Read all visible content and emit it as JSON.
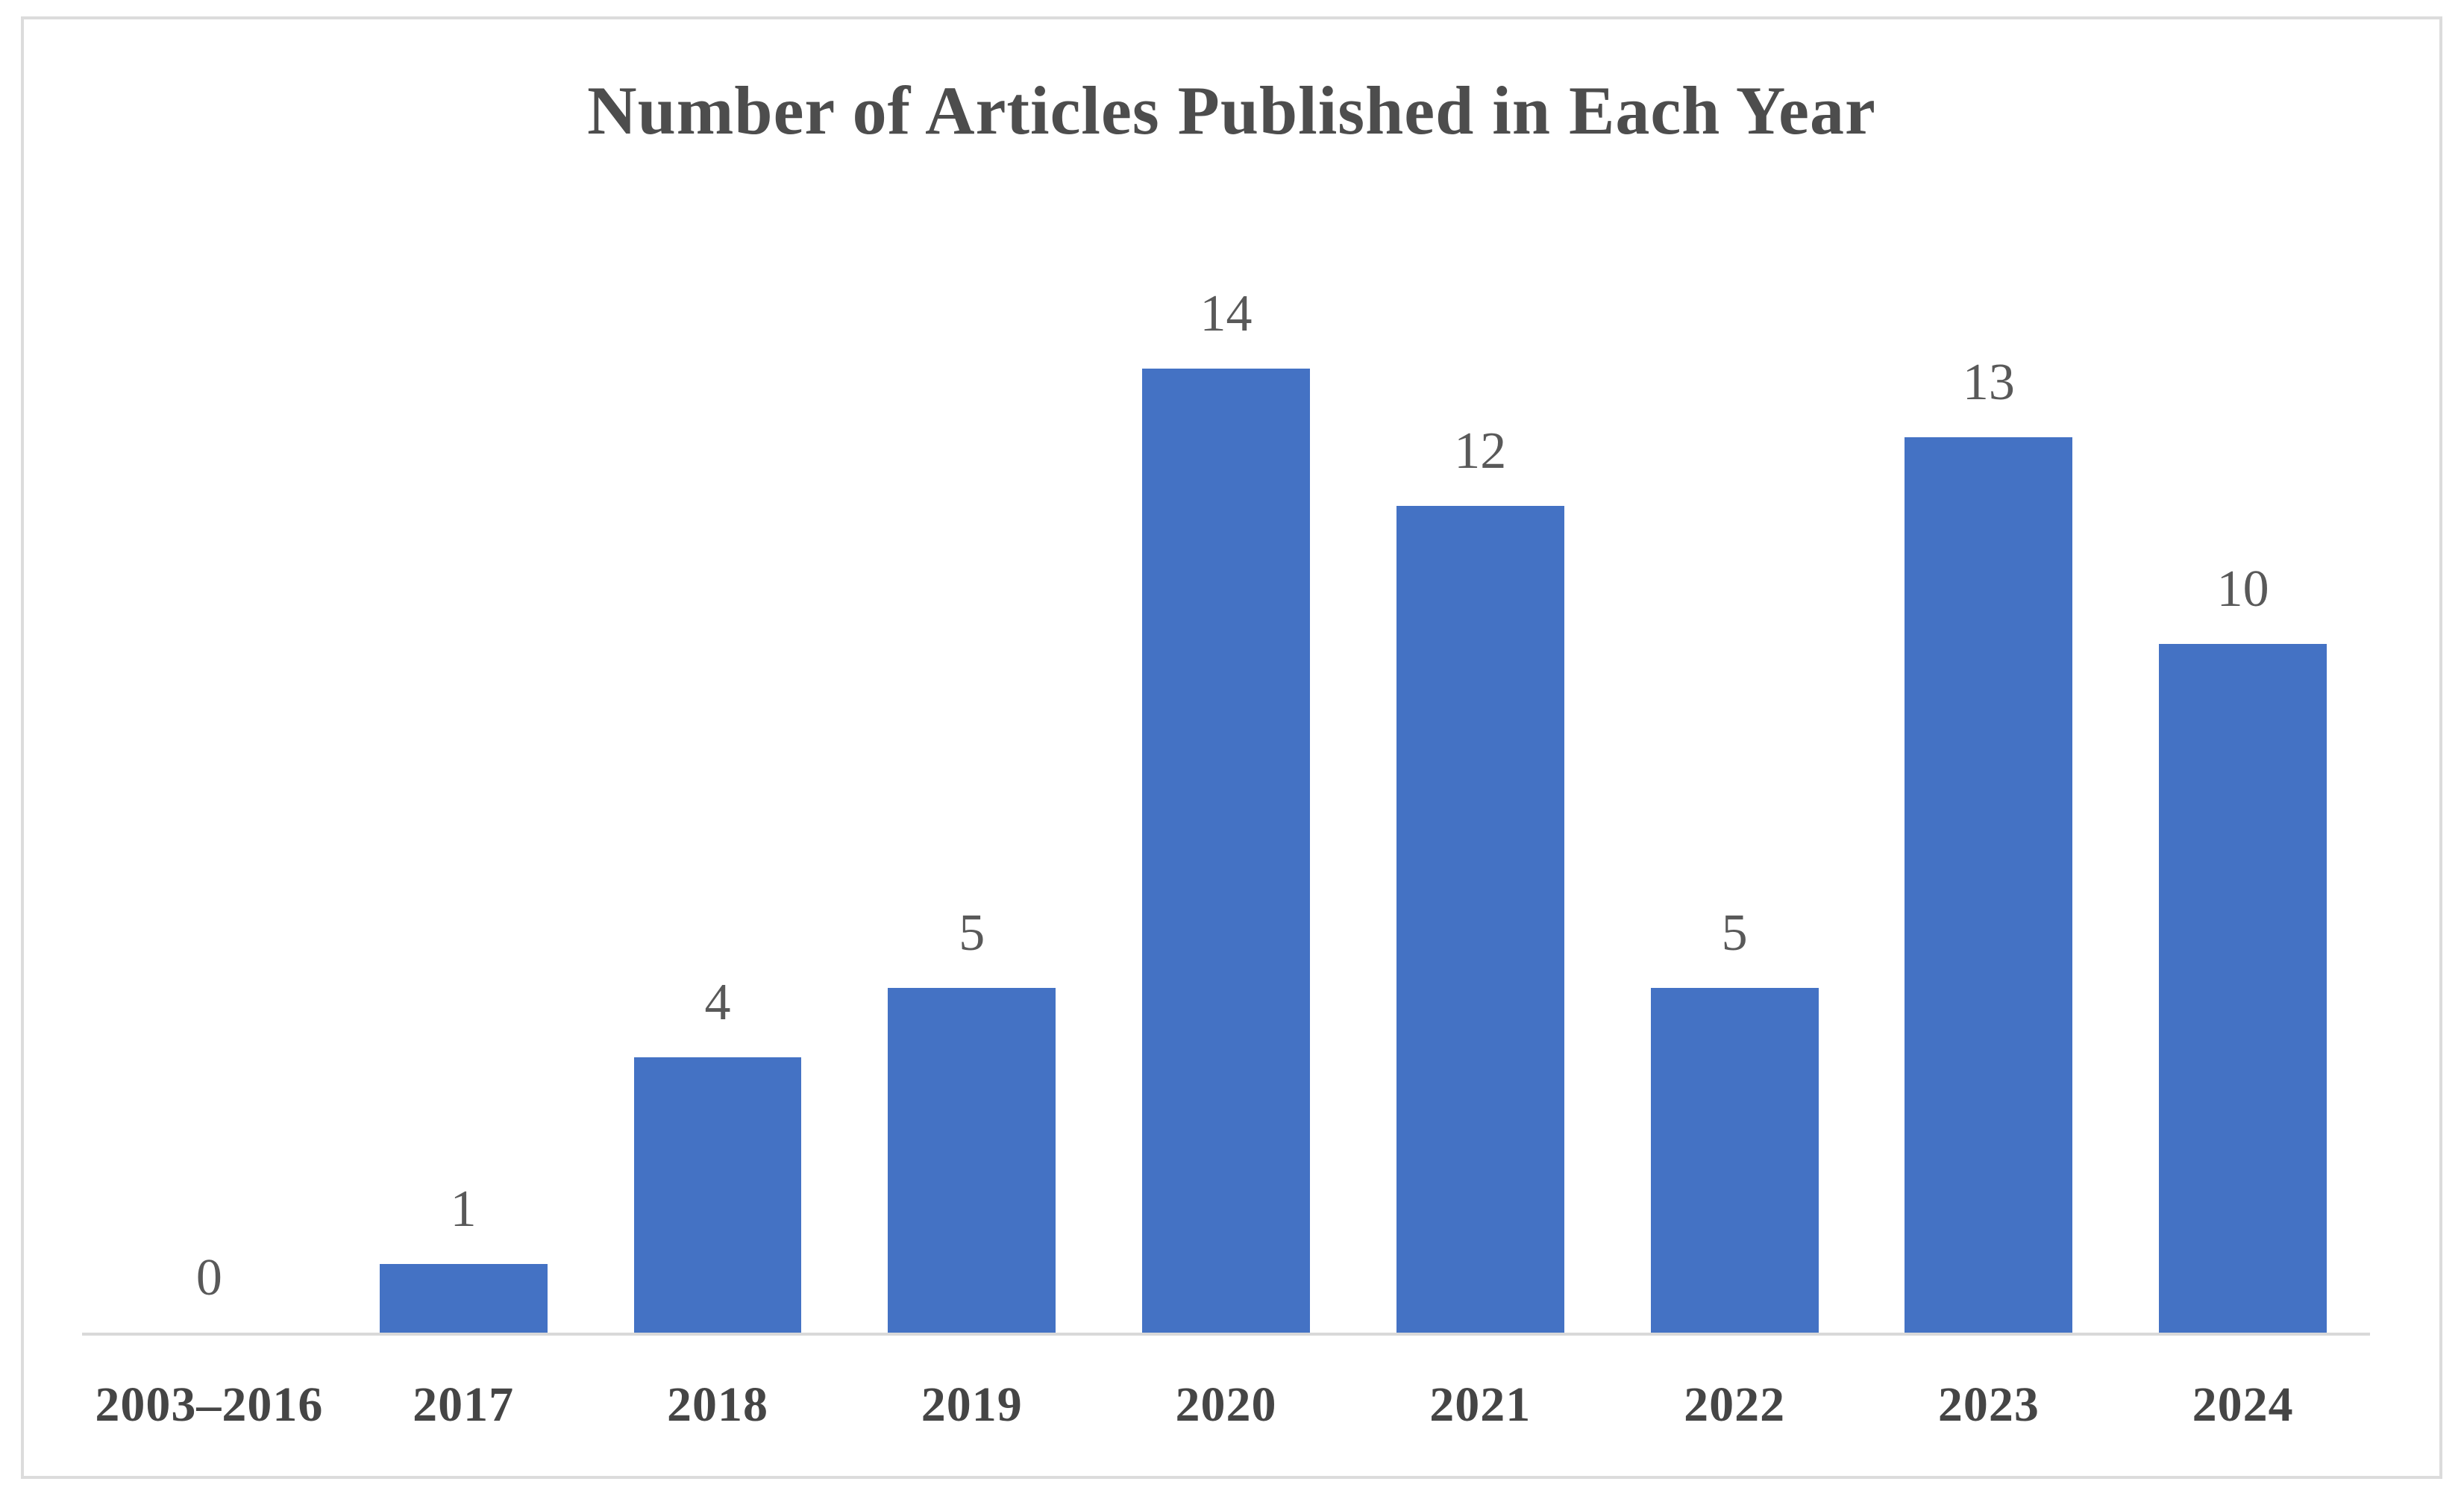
{
  "chart_data": {
    "type": "bar",
    "title": "Number of Articles Published in Each Year",
    "categories": [
      "2003–2016",
      "2017",
      "2018",
      "2019",
      "2020",
      "2021",
      "2022",
      "2023",
      "2024"
    ],
    "values": [
      0,
      1,
      4,
      5,
      14,
      12,
      5,
      13,
      10
    ],
    "xlabel": "",
    "ylabel": "",
    "ylim": [
      0,
      14
    ],
    "grid": false,
    "legend": "none",
    "data_labels": true,
    "bar_color": "#4472C4",
    "axis_line_color": "#D9D9D9",
    "frame_border_color": "#DCDCDC",
    "title_color": "#4D4D4D",
    "value_label_color": "#595959",
    "category_label_color": "#454545",
    "background_color": "#FFFFFF"
  }
}
